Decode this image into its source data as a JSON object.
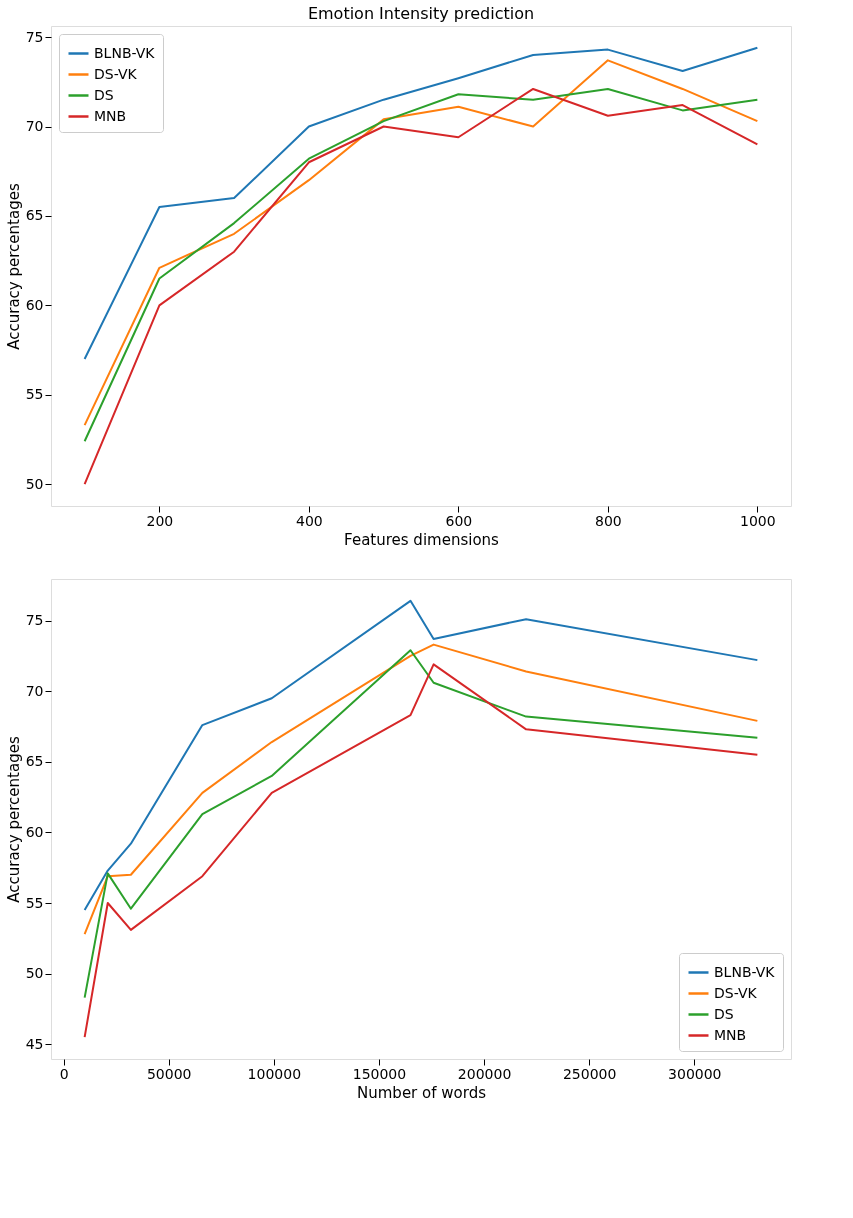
{
  "chart_data": [
    {
      "type": "line",
      "title": "Emotion Intensity prediction",
      "xlabel": "Features dimensions",
      "ylabel": "Accuracy percentages",
      "x": [
        100,
        200,
        300,
        400,
        500,
        600,
        700,
        800,
        900,
        1000
      ],
      "series": [
        {
          "name": "BLNB-VK",
          "color": "#1f77b4",
          "values": [
            57,
            65.5,
            66,
            70,
            71.5,
            72.7,
            74,
            74.3,
            73.1,
            74.4
          ]
        },
        {
          "name": "DS-VK",
          "color": "#ff7f0e",
          "values": [
            53.3,
            62.1,
            64,
            67,
            70.4,
            71.1,
            70,
            73.7,
            72.1,
            70.3
          ]
        },
        {
          "name": "DS",
          "color": "#2ca02c",
          "values": [
            52.4,
            61.5,
            64.6,
            68.2,
            70.3,
            71.8,
            71.5,
            72.1,
            70.9,
            71.5
          ]
        },
        {
          "name": "MNB",
          "color": "#d62728",
          "values": [
            50,
            60,
            63,
            68,
            70,
            69.4,
            72.1,
            70.6,
            71.2,
            69
          ]
        }
      ],
      "xlim": [
        55,
        1045
      ],
      "xticks": [
        200,
        400,
        600,
        800,
        1000
      ],
      "ylim": [
        48.78,
        75.62
      ],
      "yticks": [
        50,
        55,
        60,
        65,
        70,
        75
      ],
      "legend": "top left",
      "grid": false,
      "line_style": "solid"
    },
    {
      "type": "line",
      "xlabel": "Number of words",
      "ylabel": "Accuracy percentages",
      "x": [
        10000,
        21000,
        32000,
        66000,
        99000,
        165000,
        176000,
        220000,
        330000
      ],
      "series": [
        {
          "name": "BLNB-VK",
          "color": "#1f77b4",
          "values": [
            54.5,
            57.3,
            59.2,
            67.6,
            69.5,
            76.4,
            73.7,
            75.1,
            72.2
          ]
        },
        {
          "name": "DS-VK",
          "color": "#ff7f0e",
          "values": [
            52.8,
            56.9,
            57,
            62.8,
            66.4,
            72.5,
            73.3,
            71.4,
            67.9
          ]
        },
        {
          "name": "DS",
          "color": "#2ca02c",
          "values": [
            48.3,
            57.1,
            54.6,
            61.3,
            64,
            72.9,
            70.6,
            68.2,
            66.7
          ]
        },
        {
          "name": "MNB",
          "color": "#d62728",
          "values": [
            45.5,
            55,
            53.1,
            56.9,
            62.8,
            68.3,
            71.9,
            67.3,
            65.5
          ]
        }
      ],
      "xlim": [
        -6000,
        346000
      ],
      "xticks": [
        0,
        50000,
        100000,
        150000,
        200000,
        250000,
        300000
      ],
      "ylim": [
        43.955,
        77.945
      ],
      "yticks": [
        45,
        50,
        55,
        60,
        65,
        70,
        75
      ],
      "legend": "bottom right",
      "grid": false,
      "line_style": "solid"
    }
  ]
}
